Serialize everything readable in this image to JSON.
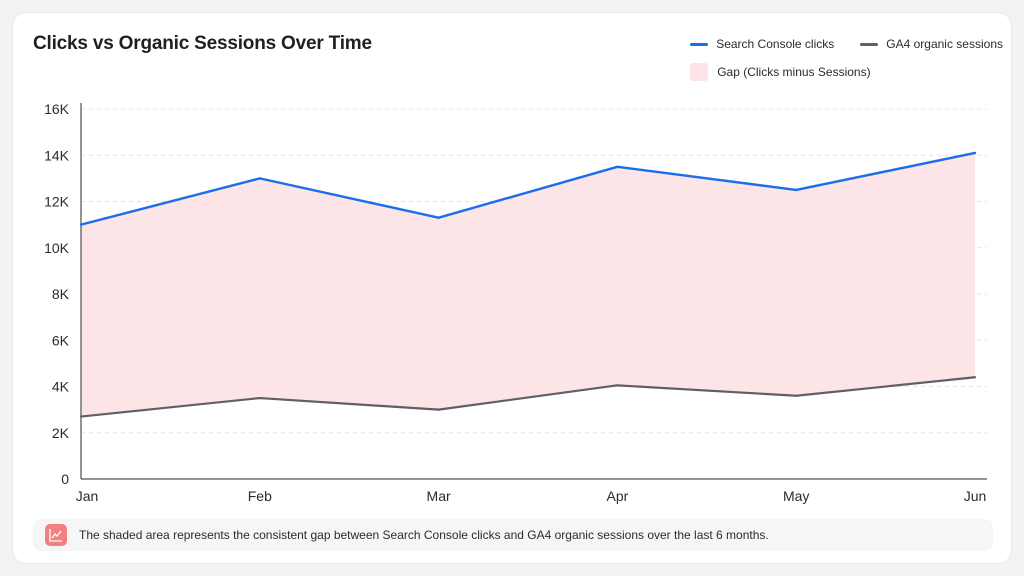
{
  "colors": {
    "clicks": "#1a6fe8",
    "sessions": "#5f5f66",
    "gap_fill": "#fde4e6",
    "note_icon_bg": "#f47f7f"
  },
  "legend": {
    "clicks": "Search Console clicks",
    "sessions": "GA4 organic sessions",
    "gap": "Gap (Clicks minus Sessions)"
  },
  "note": {
    "icon": "line-chart-icon",
    "text": "The shaded area represents the consistent gap between Search Console clicks and GA4 organic sessions over the last 6 months."
  },
  "chart_data": {
    "type": "line",
    "title": "Clicks vs Organic Sessions Over Time",
    "xlabel": "",
    "ylabel": "",
    "categories": [
      "Jan",
      "Feb",
      "Mar",
      "Apr",
      "May",
      "Jun"
    ],
    "series": [
      {
        "name": "Search Console clicks",
        "values": [
          11000,
          13000,
          11300,
          13500,
          12500,
          14100
        ]
      },
      {
        "name": "GA4 organic sessions",
        "values": [
          2700,
          3500,
          3000,
          4050,
          3600,
          4400
        ]
      }
    ],
    "area": {
      "name": "Gap (Clicks minus Sessions)",
      "between": [
        "Search Console clicks",
        "GA4 organic sessions"
      ]
    },
    "ylim": [
      0,
      16000
    ],
    "y_ticks": [
      0,
      2000,
      4000,
      6000,
      8000,
      10000,
      12000,
      14000,
      16000
    ],
    "y_tick_labels": [
      "0",
      "2K",
      "4K",
      "6K",
      "8K",
      "10K",
      "12K",
      "14K",
      "16K"
    ],
    "grid": true,
    "legend_position": "top-right"
  }
}
